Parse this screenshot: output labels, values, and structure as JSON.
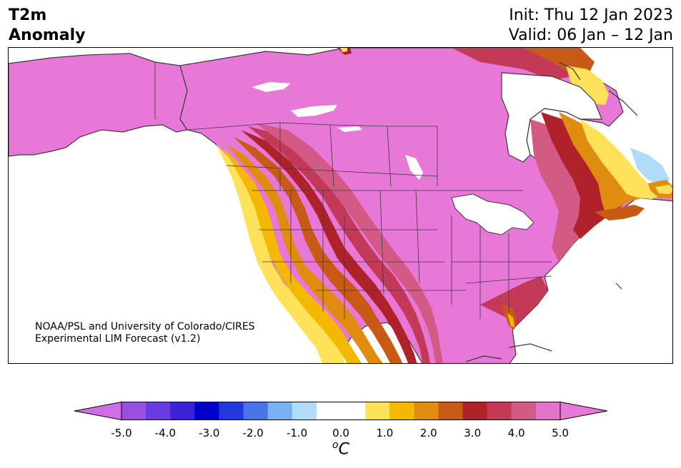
{
  "header": {
    "title_line1": "T2m",
    "title_line2": "Anomaly",
    "init": "Init: Thu 12 Jan 2023",
    "valid": "Valid: 06 Jan – 12 Jan"
  },
  "credit": {
    "line1": "NOAA/PSL and University of Colorado/CIRES",
    "line2": "Experimental LIM Forecast (v1.2)"
  },
  "colorbar": {
    "colors": [
      "#cf6ee8",
      "#9b4fe0",
      "#6a3ce0",
      "#3a22d6",
      "#0000cc",
      "#2338dc",
      "#4a74e8",
      "#78b2f2",
      "#b0dcfa",
      "#ffffff",
      "#ffffff",
      "#ffe259",
      "#f5b800",
      "#e08c10",
      "#c85a18",
      "#b0222a",
      "#c23a58",
      "#d45a86",
      "#e074c8",
      "#e878d8"
    ],
    "ticks": [
      "-5.0",
      "-4.0",
      "-3.0",
      "-2.0",
      "-1.0",
      "0.0",
      "1.0",
      "2.0",
      "3.0",
      "4.0",
      "5.0"
    ],
    "unit_symbol": "o",
    "unit_letter": "C"
  },
  "map_colors": {
    "ocean": "#ffffff",
    "max_anomaly": "#e878d8",
    "level_45": "#d45a86",
    "level_40": "#c23a58",
    "level_35": "#b0222a",
    "level_30": "#c85a18",
    "level_25": "#e08c10",
    "level_20": "#f5b800",
    "level_15": "#ffe259",
    "cool_10": "#b0dcfa",
    "border": "#3a3a3a"
  }
}
